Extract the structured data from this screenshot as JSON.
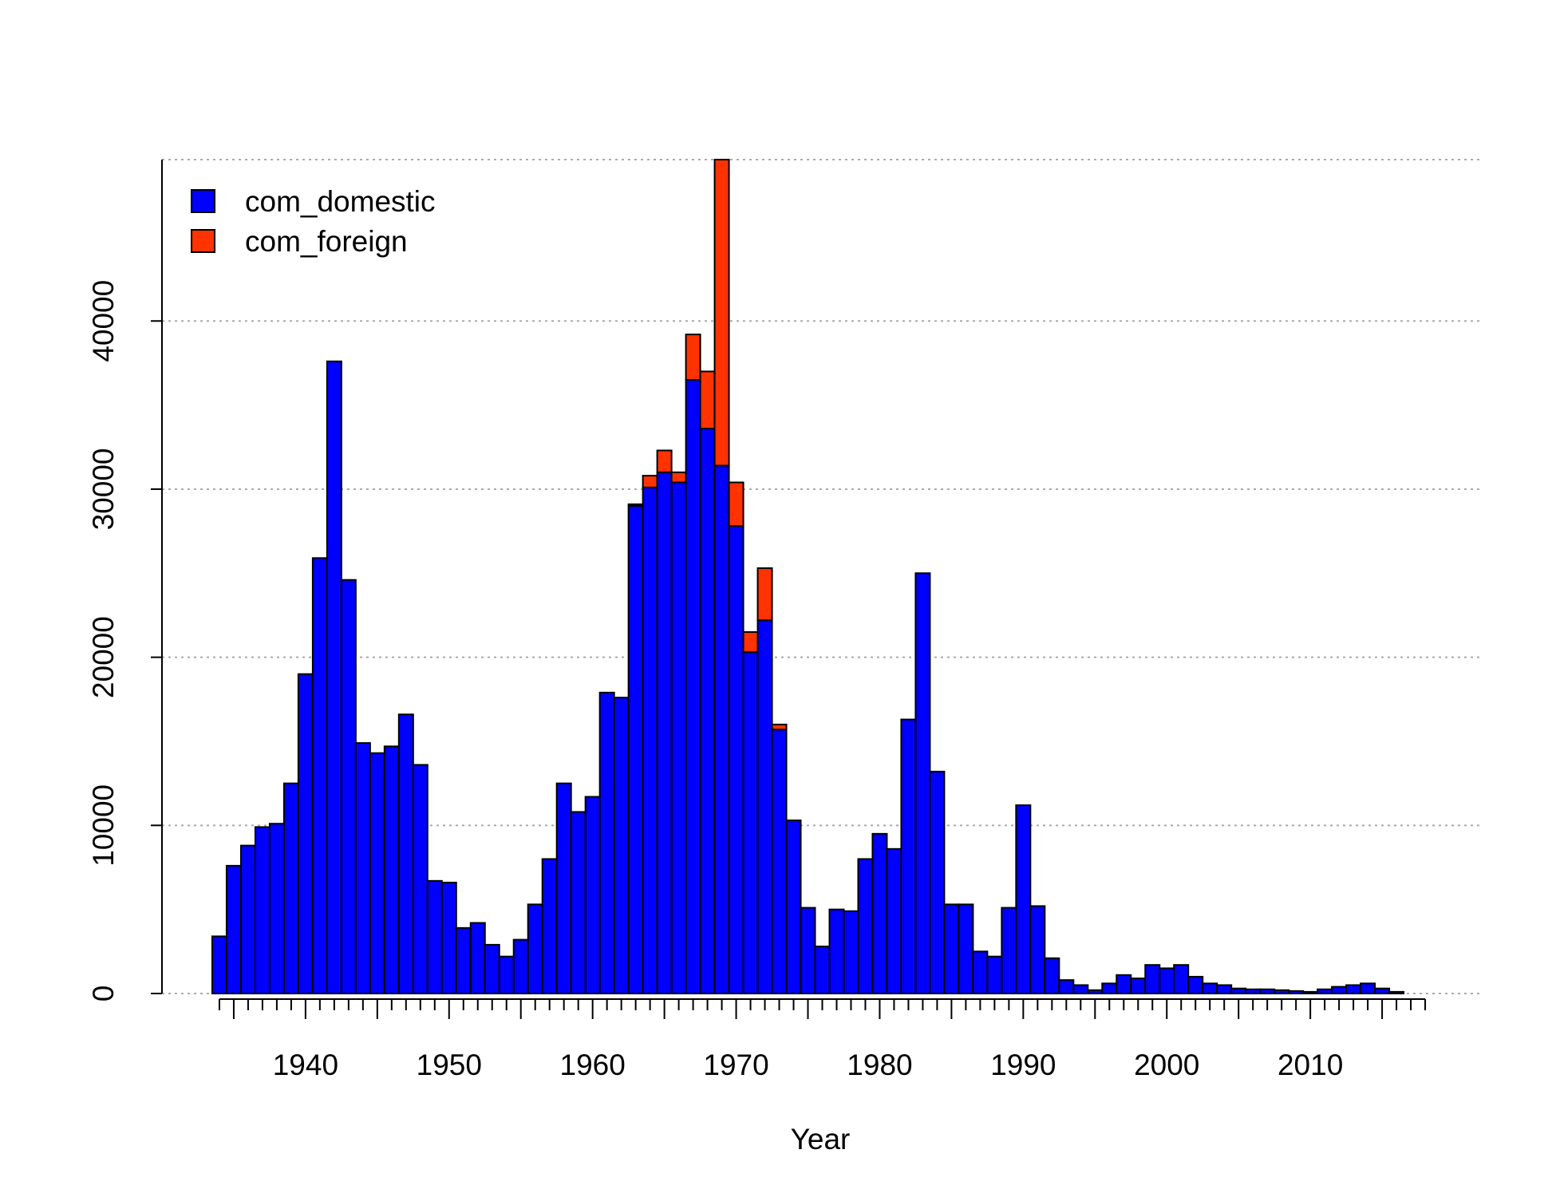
{
  "chart_data": {
    "type": "bar",
    "stacked": true,
    "title": "",
    "xlabel": "Year",
    "ylabel": "",
    "x": [
      1934,
      1935,
      1936,
      1937,
      1938,
      1939,
      1940,
      1941,
      1942,
      1943,
      1944,
      1945,
      1946,
      1947,
      1948,
      1949,
      1950,
      1951,
      1952,
      1953,
      1954,
      1955,
      1956,
      1957,
      1958,
      1959,
      1960,
      1961,
      1962,
      1963,
      1964,
      1965,
      1966,
      1967,
      1968,
      1969,
      1970,
      1971,
      1972,
      1973,
      1974,
      1975,
      1976,
      1977,
      1978,
      1979,
      1980,
      1981,
      1982,
      1983,
      1984,
      1985,
      1986,
      1987,
      1988,
      1989,
      1990,
      1991,
      1992,
      1993,
      1994,
      1995,
      1996,
      1997,
      1998,
      1999,
      2000,
      2001,
      2002,
      2003,
      2004,
      2005,
      2006,
      2007,
      2008,
      2009,
      2010,
      2011,
      2012,
      2013,
      2014,
      2015,
      2016,
      2017
    ],
    "series": [
      {
        "name": "com_domestic",
        "color": "#0000FF",
        "values": [
          3400,
          7600,
          8800,
          9900,
          10100,
          12500,
          19000,
          25900,
          37600,
          24600,
          14900,
          14300,
          14700,
          16600,
          13600,
          6700,
          6600,
          3900,
          4200,
          2900,
          2200,
          3200,
          5300,
          8000,
          12500,
          10800,
          11700,
          17900,
          17600,
          29000,
          30100,
          31000,
          30400,
          36500,
          33600,
          31400,
          27800,
          20300,
          22200,
          15700,
          10300,
          5100,
          2800,
          5000,
          4900,
          8000,
          9500,
          8600,
          16300,
          25000,
          13200,
          5300,
          5300,
          2500,
          2200,
          5100,
          11200,
          5200,
          2100,
          800,
          500,
          200,
          600,
          1100,
          900,
          1700,
          1500,
          1700,
          1000,
          600,
          500,
          300,
          250,
          250,
          200,
          150,
          100,
          250,
          400,
          500,
          600,
          300,
          100,
          0
        ]
      },
      {
        "name": "com_foreign",
        "color": "#FF3300",
        "values": [
          0,
          0,
          0,
          0,
          0,
          0,
          0,
          0,
          0,
          0,
          0,
          0,
          0,
          0,
          0,
          0,
          0,
          0,
          0,
          0,
          0,
          0,
          0,
          0,
          0,
          0,
          0,
          0,
          0,
          100,
          700,
          1300,
          600,
          2700,
          3400,
          18200,
          2600,
          1200,
          3100,
          300,
          0,
          0,
          0,
          0,
          0,
          0,
          0,
          0,
          0,
          0,
          0,
          0,
          0,
          0,
          0,
          0,
          0,
          0,
          0,
          0,
          0,
          0,
          0,
          0,
          0,
          0,
          0,
          0,
          0,
          0,
          0,
          0,
          0,
          0,
          0,
          0,
          0,
          0,
          0,
          0,
          0,
          0,
          0,
          0
        ]
      }
    ],
    "xlim": [
      1930,
      2022
    ],
    "ylim": [
      0,
      49600
    ],
    "xticks": [
      1940,
      1950,
      1960,
      1970,
      1980,
      1990,
      2000,
      2010
    ],
    "yticks": [
      0,
      10000,
      20000,
      30000,
      40000
    ],
    "grid": true,
    "legend_position": "top-left"
  }
}
